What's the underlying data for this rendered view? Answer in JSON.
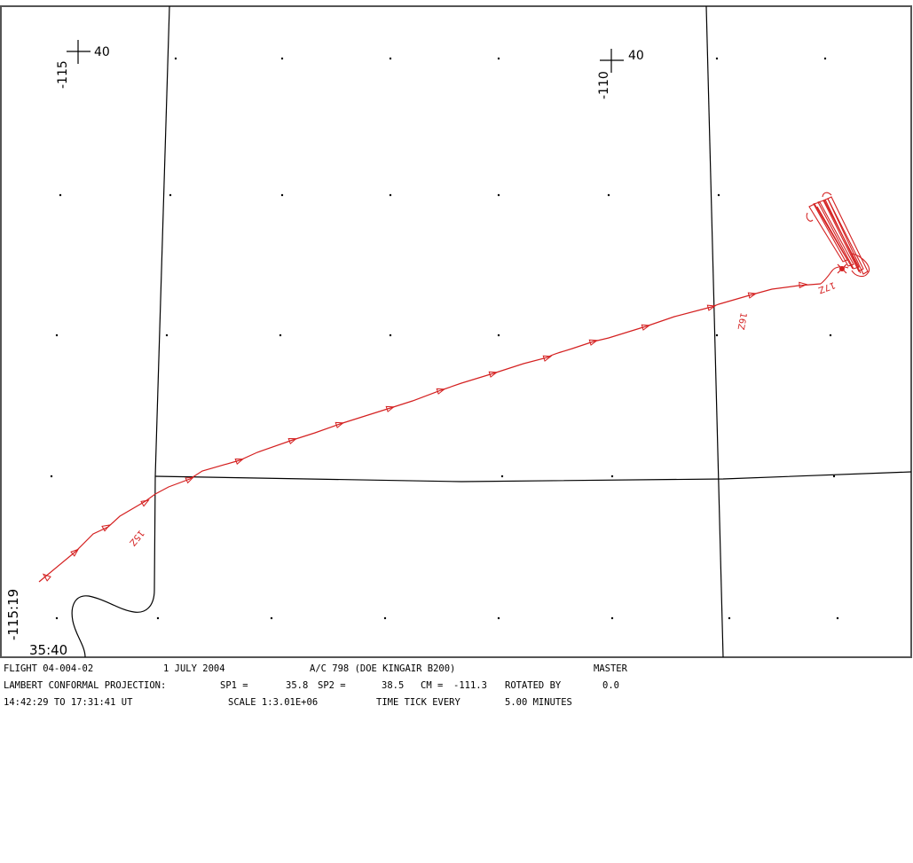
{
  "map": {
    "frame_color": "#555555",
    "boundary_color": "#000000",
    "track_color": "#d42020",
    "grid_dot_color": "#000000"
  },
  "graticule": {
    "lon_left": {
      "lon": "-115",
      "lat": "40"
    },
    "lon_right": {
      "lon": "-110",
      "lat": "40"
    },
    "corner": {
      "lon": "-115:19",
      "lat": "35:40"
    }
  },
  "track_labels": {
    "start_time": "15Z",
    "mid_time": "16Z",
    "end_time": "17Z"
  },
  "caption": {
    "line1": {
      "flight": "FLIGHT 04-004-02",
      "date": "1 JULY 2004",
      "aircraft": "A/C 798 (DOE KINGAIR B200)",
      "mode": "MASTER"
    },
    "line2": {
      "projection": "LAMBERT CONFORMAL PROJECTION:",
      "sp1_label": "SP1 =",
      "sp1_value": "35.8",
      "sp2_label": "SP2 =",
      "sp2_value": "38.5",
      "cm_label": "CM =",
      "cm_value": "-111.3",
      "rotated_label": "ROTATED BY",
      "rotated_value": "0.0"
    },
    "line3": {
      "time_range": "14:42:29 TO 17:31:41 UT",
      "scale": "SCALE 1:3.01E+06",
      "tick": "TIME TICK EVERY",
      "tick_value": "5.00 MINUTES"
    }
  }
}
